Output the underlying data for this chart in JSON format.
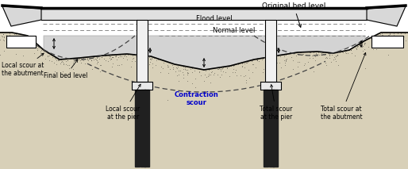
{
  "title": "Original bed level",
  "flood_level_label": "Flood level",
  "normal_level_label": "Normal level",
  "final_bed_label": "Final bed level",
  "local_scour_abutment_label": "Local scour at\nthe abutment",
  "local_scour_pier_label": "Local scour\nat the pier",
  "contraction_scour_label": "Contraction\nscour",
  "total_scour_pier_label": "Total scour\nat the pier",
  "total_scour_abutment_label": "Total scour at\nthe abutment",
  "bg_color": "#ffffff",
  "text_contraction_color": "#0000cc",
  "figsize": [
    5.14,
    2.13
  ],
  "dpi": 100
}
